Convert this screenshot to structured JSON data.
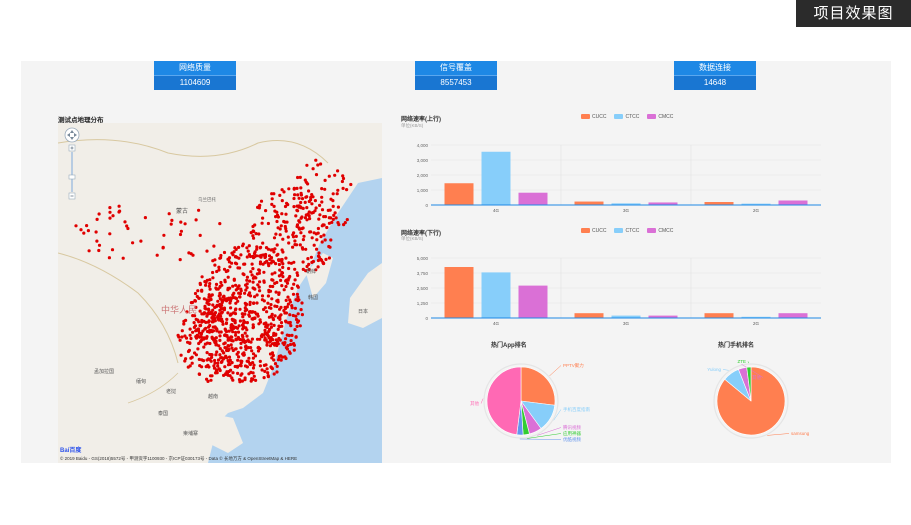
{
  "corner_label": "项目效果图",
  "stats": [
    {
      "label": "网络质量",
      "value": "1104609"
    },
    {
      "label": "信号覆盖",
      "value": "8557453"
    },
    {
      "label": "数据连接",
      "value": "14648"
    }
  ],
  "map": {
    "title": "测试点地理分布",
    "labels": [
      "蒙古",
      "乌兰巴托",
      "中华人民",
      "朝鲜",
      "韩国",
      "日本",
      "孟加拉国",
      "缅甸",
      "老挝",
      "泰国",
      "柬埔寨",
      "越南"
    ],
    "credit": "© 2019 Baidu - GS(2018)5572号 - 甲测资字1100930 - 京ICP证030173号 - Data © 长地万方 & OpenStreetMap & HERE",
    "logo": "Bai百度"
  },
  "colors": {
    "cucc": "#ff7f50",
    "ctcc": "#87cefa",
    "cmcc": "#da70d6",
    "dot": "#e00000",
    "accent": "#1e88e5"
  },
  "legend": [
    "CUCC",
    "CTCC",
    "CMCC"
  ],
  "chart_data": [
    {
      "type": "bar",
      "title": "网络速率(上行)",
      "unit": "单位(KB/S)",
      "categories": [
        "4G",
        "3G",
        "2G"
      ],
      "series": [
        {
          "name": "CUCC",
          "values": [
            1450,
            230,
            200
          ]
        },
        {
          "name": "CTCC",
          "values": [
            3550,
            110,
            90
          ]
        },
        {
          "name": "CMCC",
          "values": [
            820,
            170,
            300
          ]
        }
      ],
      "ylim": [
        0,
        4000
      ],
      "yticks": [
        "0",
        "1,000",
        "2,000",
        "3,000",
        "4,000"
      ]
    },
    {
      "type": "bar",
      "title": "网络速率(下行)",
      "unit": "单位(KB/S)",
      "categories": [
        "4G",
        "3G",
        "2G"
      ],
      "series": [
        {
          "name": "CUCC",
          "values": [
            4250,
            400,
            400
          ]
        },
        {
          "name": "CTCC",
          "values": [
            3800,
            200,
            100
          ]
        },
        {
          "name": "CMCC",
          "values": [
            2700,
            200,
            400
          ]
        }
      ],
      "ylim": [
        0,
        5000
      ],
      "yticks": [
        "0",
        "1,250",
        "2,500",
        "3,750",
        "5,000"
      ]
    },
    {
      "type": "pie",
      "title": "热门App排名",
      "slices": [
        {
          "label": "PPTV聚力",
          "value": 27,
          "color": "#ff7f50"
        },
        {
          "label": "手机百度指南",
          "value": 13,
          "color": "#87cefa"
        },
        {
          "label": "腾讯视频",
          "value": 6,
          "color": "#da70d6"
        },
        {
          "label": "应用神器",
          "value": 3,
          "color": "#32cd32"
        },
        {
          "label": "优酷视频",
          "value": 3,
          "color": "#6495ed"
        },
        {
          "label": "其他",
          "value": 48,
          "color": "#ff69b4"
        }
      ]
    },
    {
      "type": "pie",
      "title": "热门手机排名",
      "slices": [
        {
          "label": "samsung",
          "value": 86,
          "color": "#ff7f50"
        },
        {
          "label": "Yulong",
          "value": 8,
          "color": "#87cefa"
        },
        {
          "label": "其他",
          "value": 4,
          "color": "#da70d6"
        },
        {
          "label": "ZTE",
          "value": 2,
          "color": "#32cd32"
        }
      ]
    }
  ]
}
